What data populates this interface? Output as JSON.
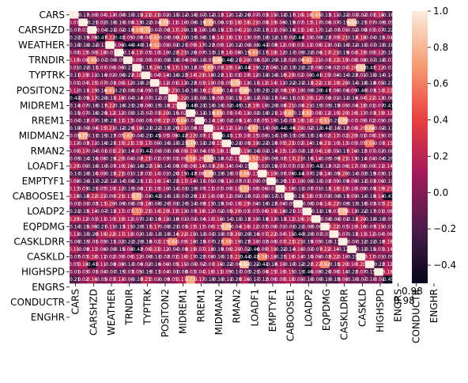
{
  "chart_data": {
    "type": "heatmap",
    "title": "",
    "xlabel": "",
    "ylabel": "",
    "annotated": true,
    "row_count": 36,
    "col_count": 36,
    "tick_labels": [
      "CARS",
      "CARSHZD",
      "WEATHER",
      "TRNDIR",
      "TYPTRK",
      "POSITON2",
      "MIDREM1",
      "RREM1",
      "MIDMAN2",
      "RMAN2",
      "LOADF1",
      "EMPTYF1",
      "CABOOSE1",
      "LOADP2",
      "EQPDMG",
      "CASKLDRR",
      "CASKLD",
      "HIGHSPD",
      "ENGRS",
      "CONDUCTR",
      "ENGHR"
    ],
    "visible_annotations": [
      "0.98",
      "0.98"
    ],
    "colorbar": {
      "range": [
        -0.5,
        1.0
      ],
      "ticks": [
        "1.0",
        "0.8",
        "0.6",
        "0.4",
        "0.2",
        "0.0",
        "−0.2",
        "−0.4"
      ],
      "colors": [
        "#03051a",
        "#4c1d4b",
        "#a11a5b",
        "#e83f3f",
        "#f69c73",
        "#faebdd"
      ]
    }
  }
}
